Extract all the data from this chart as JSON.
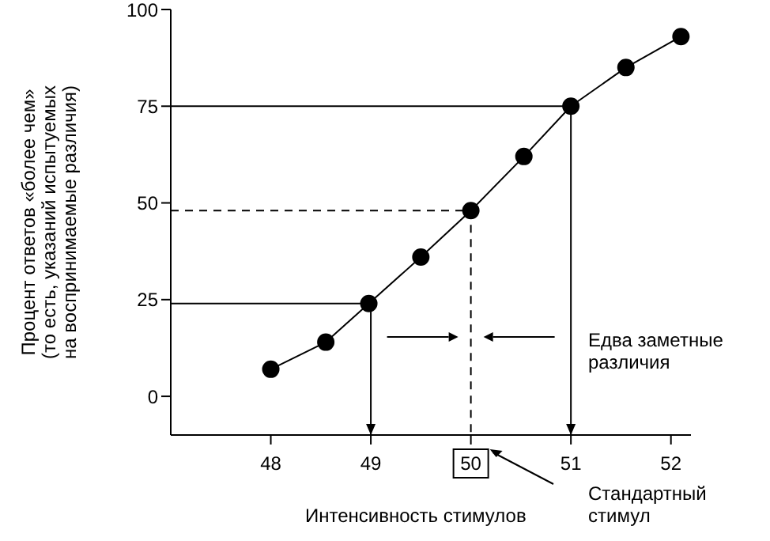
{
  "chart_data": {
    "type": "line",
    "xlabel": "Интенсивность стимулов",
    "ylabel": "Процент ответов «более чем»\n(то есть, указаний испытуемых\nна воспринимаемые различия)",
    "x": [
      48,
      48.55,
      48.98,
      49.5,
      50,
      50.53,
      51,
      51.55,
      52.1
    ],
    "series": [
      {
        "color": "#000000",
        "values": [
          7,
          14,
          24,
          36,
          48,
          62,
          75,
          85,
          93
        ]
      }
    ],
    "xlim": [
      47,
      52.2
    ],
    "xticks": [
      48,
      49,
      50,
      51,
      52
    ],
    "ylim": [
      -10,
      100
    ],
    "yticks": [
      0,
      25,
      50,
      75,
      100
    ],
    "marker": "circle",
    "line_style": "solid",
    "ref_lines": [
      {
        "axis": "y",
        "value": 24,
        "line_style": "solid"
      },
      {
        "axis": "x",
        "value": 49,
        "line_style": "solid"
      },
      {
        "axis": "y",
        "value": 48,
        "line_style": "dashed"
      },
      {
        "axis": "x",
        "value": 50,
        "line_style": "dashed"
      },
      {
        "axis": "y",
        "value": 75,
        "line_style": "solid"
      },
      {
        "axis": "x",
        "value": 51,
        "line_style": "solid"
      }
    ],
    "annotations": [
      "Едва заметные различия",
      "Стандартный стимул"
    ]
  }
}
